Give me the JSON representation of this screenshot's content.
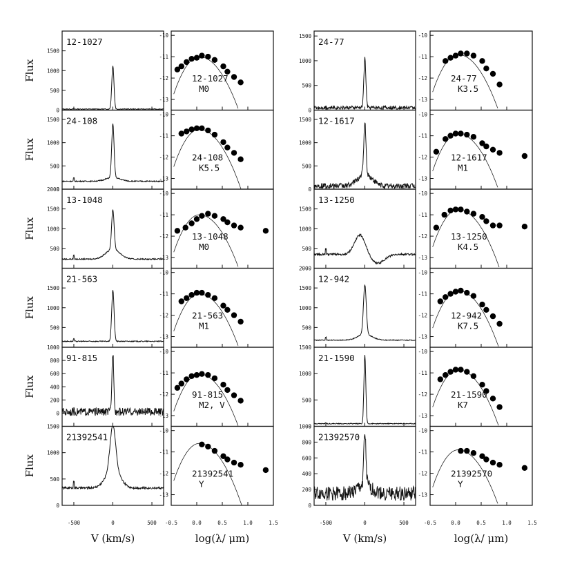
{
  "figure": {
    "y_label_flux": "Flux",
    "x_label_velocity": "V (km/s)",
    "x_label_sed": "log(λ/ μm)",
    "velocity_xticks": [
      "-500",
      "0",
      "500"
    ],
    "sed_xticks": [
      "-0.5",
      "0.0",
      "0.5",
      "1.0",
      "1.5"
    ],
    "sed_yticks": [
      "-10",
      "-11",
      "-12",
      "-13"
    ]
  },
  "chart_data": [
    {
      "type": "line",
      "panel": "spectrum",
      "label": "12-1027",
      "col": 0,
      "row": 0,
      "ylim": [
        0,
        2000
      ],
      "yticks": [
        "0",
        "500",
        "1000",
        "1500"
      ],
      "continuum": 25,
      "peak": 1100,
      "width": 14,
      "noise": 10,
      "broad_amp": 0
    },
    {
      "type": "line",
      "panel": "spectrum",
      "label": "24-108",
      "col": 0,
      "row": 1,
      "ylim": [
        0,
        1700
      ],
      "yticks": [
        "0",
        "500",
        "1000",
        "1500"
      ],
      "continuum": 170,
      "peak": 1150,
      "width": 15,
      "noise": 12,
      "broad_amp": 80
    },
    {
      "type": "line",
      "panel": "spectrum",
      "label": "13-1048",
      "col": 0,
      "row": 2,
      "ylim": [
        0,
        2000
      ],
      "yticks": [
        "500",
        "1000",
        "1500",
        "2000"
      ],
      "continuum": 230,
      "peak": 1000,
      "width": 16,
      "noise": 15,
      "broad_amp": 250
    },
    {
      "type": "line",
      "panel": "spectrum",
      "label": "21-563",
      "col": 0,
      "row": 3,
      "ylim": [
        0,
        2000
      ],
      "yticks": [
        "500",
        "1000",
        "1500"
      ],
      "continuum": 150,
      "peak": 1300,
      "width": 15,
      "noise": 12,
      "broad_amp": 0
    },
    {
      "type": "line",
      "panel": "spectrum",
      "label": "91-815",
      "col": 0,
      "row": 4,
      "ylim": [
        -200,
        1000
      ],
      "yticks": [
        "0",
        "200",
        "400",
        "600",
        "800",
        "1000"
      ],
      "continuum": 20,
      "peak": 900,
      "width": 12,
      "noise": 60,
      "broad_amp": 0
    },
    {
      "type": "line",
      "panel": "spectrum",
      "label": "21392541",
      "col": 0,
      "row": 5,
      "ylim": [
        0,
        1500
      ],
      "yticks": [
        "0",
        "500",
        "1000",
        "1500"
      ],
      "continuum": 330,
      "peak": 850,
      "width": 35,
      "noise": 20,
      "broad_amp": 350
    },
    {
      "type": "scatter",
      "panel": "sed",
      "label": "12-1027",
      "spectral_type": "M0",
      "col": 1,
      "row": 0,
      "ylim": [
        -13.5,
        -9.8
      ],
      "x": [
        -0.38,
        -0.3,
        -0.2,
        -0.1,
        0.0,
        0.1,
        0.22,
        0.35,
        0.52,
        0.6,
        0.73,
        0.86
      ],
      "y": [
        -11.6,
        -11.45,
        -11.25,
        -11.1,
        -11.05,
        -10.95,
        -11.0,
        -11.15,
        -11.45,
        -11.7,
        -11.95,
        -12.2
      ],
      "model_peak": -11.0
    },
    {
      "type": "scatter",
      "panel": "sed",
      "label": "24-108",
      "spectral_type": "K5.5",
      "col": 1,
      "row": 1,
      "ylim": [
        -13.5,
        -9.8
      ],
      "x": [
        -0.3,
        -0.2,
        -0.1,
        0.0,
        0.1,
        0.22,
        0.35,
        0.52,
        0.6,
        0.73,
        0.86
      ],
      "y": [
        -10.9,
        -10.8,
        -10.7,
        -10.65,
        -10.65,
        -10.75,
        -10.95,
        -11.3,
        -11.55,
        -11.8,
        -12.1
      ],
      "model_peak": -10.7
    },
    {
      "type": "scatter",
      "panel": "sed",
      "label": "13-1048",
      "spectral_type": "M0",
      "col": 1,
      "row": 2,
      "ylim": [
        -13.5,
        -9.8
      ],
      "x": [
        -0.38,
        -0.22,
        -0.1,
        0.0,
        0.1,
        0.22,
        0.35,
        0.52,
        0.6,
        0.73,
        0.86,
        1.35
      ],
      "y": [
        -11.75,
        -11.6,
        -11.4,
        -11.2,
        -11.05,
        -10.95,
        -11.05,
        -11.2,
        -11.35,
        -11.5,
        -11.6,
        -11.75
      ],
      "model_peak": -11.0
    },
    {
      "type": "scatter",
      "panel": "sed",
      "label": "21-563",
      "spectral_type": "M1",
      "col": 1,
      "row": 3,
      "ylim": [
        -13.5,
        -9.8
      ],
      "x": [
        -0.3,
        -0.2,
        -0.1,
        0.0,
        0.1,
        0.22,
        0.35,
        0.52,
        0.6,
        0.73,
        0.86
      ],
      "y": [
        -11.35,
        -11.2,
        -11.05,
        -10.95,
        -10.95,
        -11.05,
        -11.2,
        -11.55,
        -11.75,
        -12.0,
        -12.3
      ],
      "model_peak": -11.0
    },
    {
      "type": "scatter",
      "panel": "sed",
      "label": "91-815",
      "spectral_type": "M2, V",
      "col": 1,
      "row": 4,
      "ylim": [
        -13.5,
        -9.8
      ],
      "x": [
        -0.38,
        -0.3,
        -0.2,
        -0.1,
        0.0,
        0.1,
        0.22,
        0.35,
        0.52,
        0.6,
        0.73,
        0.86
      ],
      "y": [
        -11.7,
        -11.5,
        -11.3,
        -11.15,
        -11.1,
        -11.05,
        -11.1,
        -11.25,
        -11.55,
        -11.8,
        -12.05,
        -12.3
      ],
      "model_peak": -11.05
    },
    {
      "type": "scatter",
      "panel": "sed",
      "label": "21392541",
      "spectral_type": "Y",
      "col": 1,
      "row": 5,
      "ylim": [
        -13.5,
        -9.8
      ],
      "x": [
        0.1,
        0.22,
        0.35,
        0.52,
        0.6,
        0.73,
        0.86,
        1.35
      ],
      "y": [
        -10.65,
        -10.75,
        -10.95,
        -11.2,
        -11.35,
        -11.5,
        -11.6,
        -11.85
      ],
      "model_peak": -10.6
    },
    {
      "type": "line",
      "panel": "spectrum",
      "label": "24-77",
      "col": 2,
      "row": 0,
      "ylim": [
        0,
        1600
      ],
      "yticks": [
        "0",
        "500",
        "1000",
        "1500"
      ],
      "continuum": 50,
      "peak": 1000,
      "width": 13,
      "noise": 35,
      "broad_amp": 0
    },
    {
      "type": "line",
      "panel": "spectrum",
      "label": "12-1617",
      "col": 2,
      "row": 1,
      "ylim": [
        0,
        1700
      ],
      "yticks": [
        "0",
        "500",
        "1000",
        "1500"
      ],
      "continuum": 70,
      "peak": 1100,
      "width": 14,
      "noise": 60,
      "broad_amp": 250
    },
    {
      "type": "line",
      "panel": "spectrum",
      "label": "13-1250",
      "col": 2,
      "row": 2,
      "ylim": [
        0,
        2000
      ],
      "yticks": [
        "500",
        "1000",
        "1500"
      ],
      "continuum": 350,
      "peak": 0,
      "width": 14,
      "noise": 25,
      "broad_amp": 500,
      "pcygni": true
    },
    {
      "type": "line",
      "panel": "spectrum",
      "label": "12-942",
      "col": 2,
      "row": 3,
      "ylim": [
        0,
        2000
      ],
      "yticks": [
        "500",
        "1000",
        "1500",
        "2000"
      ],
      "continuum": 180,
      "peak": 1250,
      "width": 18,
      "noise": 10,
      "broad_amp": 150
    },
    {
      "type": "line",
      "panel": "spectrum",
      "label": "21-1590",
      "col": 2,
      "row": 4,
      "ylim": [
        0,
        1500
      ],
      "yticks": [
        "0",
        "500",
        "1000",
        "1500"
      ],
      "continuum": 50,
      "peak": 1300,
      "width": 12,
      "noise": 8,
      "broad_amp": 0
    },
    {
      "type": "line",
      "panel": "spectrum",
      "label": "21392570",
      "col": 2,
      "row": 5,
      "ylim": [
        0,
        1000
      ],
      "yticks": [
        "0",
        "200",
        "400",
        "600",
        "800",
        "1000"
      ],
      "continuum": 150,
      "peak": 650,
      "width": 14,
      "noise": 90,
      "broad_amp": 100
    },
    {
      "type": "scatter",
      "panel": "sed",
      "label": "24-77",
      "spectral_type": "K3.5",
      "col": 3,
      "row": 0,
      "ylim": [
        -13.5,
        -9.8
      ],
      "x": [
        -0.2,
        -0.1,
        0.0,
        0.1,
        0.22,
        0.35,
        0.52,
        0.6,
        0.73,
        0.86
      ],
      "y": [
        -11.2,
        -11.05,
        -10.95,
        -10.85,
        -10.85,
        -10.95,
        -11.2,
        -11.55,
        -11.8,
        -12.3
      ],
      "model_peak": -10.9
    },
    {
      "type": "scatter",
      "panel": "sed",
      "label": "12-1617",
      "spectral_type": "M1",
      "col": 3,
      "row": 1,
      "ylim": [
        -13.5,
        -9.8
      ],
      "x": [
        -0.38,
        -0.2,
        -0.1,
        0.0,
        0.1,
        0.22,
        0.35,
        0.52,
        0.6,
        0.73,
        0.86,
        1.35
      ],
      "y": [
        -11.75,
        -11.15,
        -11.0,
        -10.9,
        -10.9,
        -10.95,
        -11.05,
        -11.35,
        -11.5,
        -11.65,
        -11.8,
        -11.95
      ],
      "model_peak": -10.9
    },
    {
      "type": "scatter",
      "panel": "sed",
      "label": "13-1250",
      "spectral_type": "K4.5",
      "col": 3,
      "row": 2,
      "ylim": [
        -13.5,
        -9.8
      ],
      "x": [
        -0.38,
        -0.22,
        -0.1,
        0.0,
        0.1,
        0.22,
        0.35,
        0.52,
        0.6,
        0.73,
        0.86,
        1.35
      ],
      "y": [
        -11.6,
        -11.0,
        -10.8,
        -10.75,
        -10.75,
        -10.85,
        -10.95,
        -11.1,
        -11.3,
        -11.5,
        -11.5,
        -11.55
      ],
      "model_peak": -10.75
    },
    {
      "type": "scatter",
      "panel": "sed",
      "label": "12-942",
      "spectral_type": "K7.5",
      "col": 3,
      "row": 3,
      "ylim": [
        -13.5,
        -9.8
      ],
      "x": [
        -0.3,
        -0.2,
        -0.1,
        0.0,
        0.1,
        0.22,
        0.35,
        0.52,
        0.6,
        0.73,
        0.86
      ],
      "y": [
        -11.35,
        -11.15,
        -11.0,
        -10.9,
        -10.85,
        -10.95,
        -11.1,
        -11.5,
        -11.75,
        -12.05,
        -12.4
      ],
      "model_peak": -10.85
    },
    {
      "type": "scatter",
      "panel": "sed",
      "label": "21-1590",
      "spectral_type": "K7",
      "col": 3,
      "row": 4,
      "ylim": [
        -13.5,
        -9.8
      ],
      "x": [
        -0.3,
        -0.2,
        -0.1,
        0.0,
        0.1,
        0.22,
        0.35,
        0.52,
        0.6,
        0.73,
        0.86
      ],
      "y": [
        -11.3,
        -11.1,
        -10.95,
        -10.85,
        -10.85,
        -10.95,
        -11.15,
        -11.55,
        -11.85,
        -12.2,
        -12.6
      ],
      "model_peak": -10.85
    },
    {
      "type": "scatter",
      "panel": "sed",
      "label": "21392570",
      "spectral_type": "Y",
      "col": 3,
      "row": 5,
      "ylim": [
        -13.5,
        -9.8
      ],
      "x": [
        0.1,
        0.22,
        0.35,
        0.52,
        0.6,
        0.73,
        0.86,
        1.35
      ],
      "y": [
        -10.95,
        -10.95,
        -11.05,
        -11.2,
        -11.35,
        -11.5,
        -11.6,
        -11.75
      ],
      "model_peak": -10.9
    }
  ]
}
